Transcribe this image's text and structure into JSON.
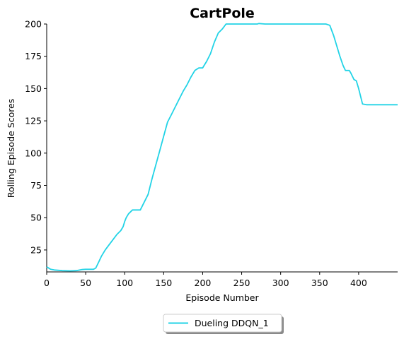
{
  "chart_data": {
    "type": "line",
    "title": "CartPole",
    "xlabel": "Episode Number",
    "ylabel": "Rolling Episode Scores",
    "xlim": [
      0,
      450
    ],
    "ylim": [
      8,
      200
    ],
    "xticks": [
      0,
      50,
      100,
      150,
      200,
      250,
      300,
      350,
      400
    ],
    "yticks": [
      25,
      50,
      75,
      100,
      125,
      150,
      175,
      200
    ],
    "grid": false,
    "legend_position": "bottom-center",
    "series": [
      {
        "name": "Dueling DDQN_1",
        "color": "#22d3e6",
        "x": [
          0,
          5,
          10,
          20,
          30,
          38,
          45,
          50,
          55,
          60,
          63,
          67,
          70,
          75,
          80,
          85,
          90,
          95,
          98,
          100,
          102,
          105,
          110,
          115,
          120,
          125,
          130,
          135,
          140,
          145,
          150,
          155,
          160,
          165,
          170,
          175,
          180,
          185,
          190,
          195,
          200,
          202,
          205,
          210,
          215,
          220,
          225,
          230,
          240,
          250,
          260,
          270,
          272,
          280,
          290,
          300,
          310,
          320,
          330,
          340,
          350,
          358,
          363,
          368,
          372,
          376,
          380,
          383,
          386,
          388,
          390,
          394,
          397,
          400,
          405,
          410,
          420,
          430,
          440,
          450
        ],
        "y": [
          12,
          10,
          9.5,
          9,
          8.8,
          9,
          9.8,
          10,
          10,
          10,
          11,
          16,
          20,
          25,
          29,
          33,
          37,
          40,
          43,
          47,
          50,
          53,
          56,
          56,
          56,
          62,
          68,
          80,
          91,
          102,
          113,
          124,
          130,
          136,
          142,
          148,
          153,
          159,
          164,
          166,
          166,
          168,
          171,
          177,
          186,
          193,
          196,
          200,
          200,
          200,
          200,
          200,
          200.4,
          200,
          200,
          200,
          200,
          200,
          200,
          200,
          200,
          200,
          199,
          191,
          183,
          175,
          168,
          164,
          164,
          164,
          162,
          157,
          156,
          150,
          138,
          137.5,
          137.5,
          137.5,
          137.5,
          137.5
        ]
      }
    ]
  }
}
